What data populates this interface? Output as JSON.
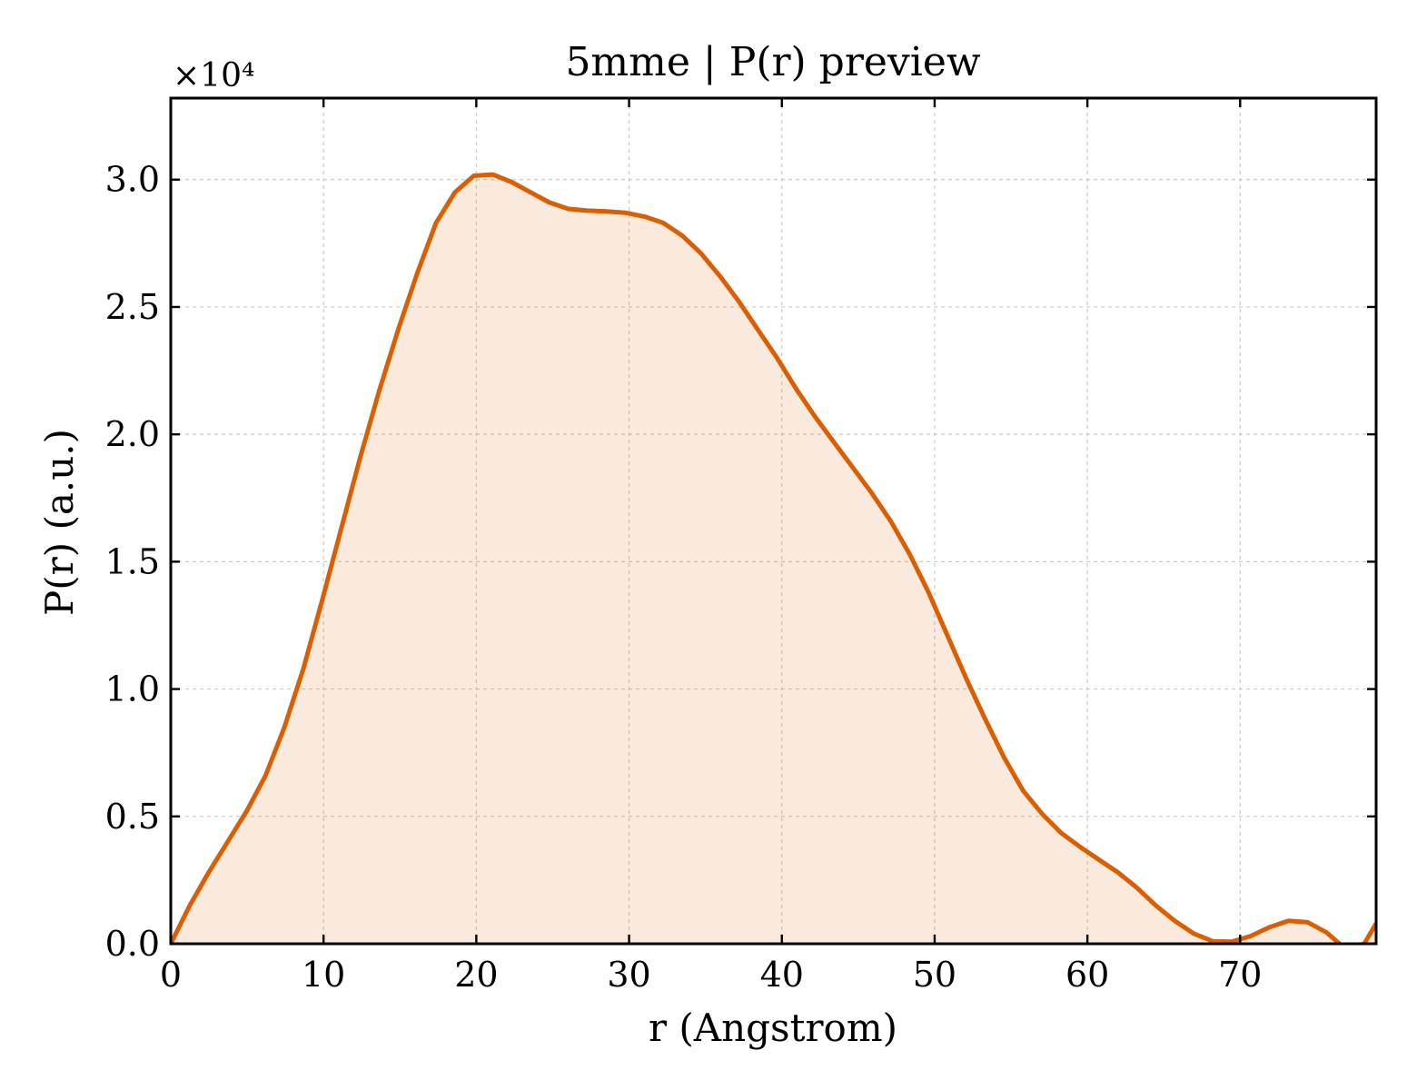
{
  "chart_data": {
    "type": "area",
    "title": "5mme | P(r) preview",
    "xlabel": "r (Angstrom)",
    "ylabel": "P(r) (a.u.)",
    "y_multiplier_label": "×10⁴",
    "xlim": [
      0,
      78.9
    ],
    "ylim": [
      0,
      3.32
    ],
    "x_ticks": [
      0,
      10,
      20,
      30,
      40,
      50,
      60,
      70
    ],
    "y_ticks": [
      0.0,
      0.5,
      1.0,
      1.5,
      2.0,
      2.5,
      3.0
    ],
    "x_tick_labels": [
      "0",
      "10",
      "20",
      "30",
      "40",
      "50",
      "60",
      "70"
    ],
    "y_tick_labels": [
      "0.0",
      "0.5",
      "1.0",
      "1.5",
      "2.0",
      "2.5",
      "3.0"
    ],
    "grid": true,
    "grid_style": "dashed",
    "tick_direction": "in",
    "legend": "none",
    "line_color": "#d95f02",
    "fill_color": "#d95f02",
    "fill_opacity": 0.13,
    "series": [
      {
        "x": [
          0,
          1.24,
          2.48,
          3.72,
          4.96,
          6.2,
          7.44,
          8.68,
          9.92,
          11.16,
          12.4,
          13.64,
          14.88,
          16.12,
          17.36,
          18.6,
          19.84,
          21.08,
          22.32,
          23.56,
          24.8,
          26.04,
          27.28,
          28.52,
          29.76,
          31.0,
          32.24,
          33.48,
          34.72,
          35.96,
          37.2,
          38.44,
          39.68,
          40.92,
          42.16,
          43.4,
          44.64,
          45.88,
          47.12,
          48.36,
          49.6,
          50.84,
          52.08,
          53.32,
          54.56,
          55.8,
          57.04,
          58.28,
          59.52,
          60.76,
          62.0,
          63.24,
          64.48,
          65.72,
          66.96,
          68.2,
          69.44,
          70.68,
          71.92,
          73.16,
          74.4,
          75.64,
          76.88,
          78.12,
          78.9
        ],
        "y": [
          0.0,
          0.15,
          0.28,
          0.4,
          0.52,
          0.66,
          0.85,
          1.08,
          1.35,
          1.63,
          1.91,
          2.17,
          2.41,
          2.63,
          2.83,
          2.95,
          3.015,
          3.02,
          2.99,
          2.95,
          2.91,
          2.885,
          2.878,
          2.875,
          2.87,
          2.855,
          2.83,
          2.78,
          2.71,
          2.62,
          2.52,
          2.41,
          2.3,
          2.18,
          2.07,
          1.97,
          1.87,
          1.77,
          1.66,
          1.53,
          1.38,
          1.21,
          1.04,
          0.88,
          0.73,
          0.6,
          0.51,
          0.435,
          0.38,
          0.33,
          0.28,
          0.22,
          0.15,
          0.09,
          0.04,
          0.01,
          0.008,
          0.03,
          0.065,
          0.09,
          0.085,
          0.045,
          -0.02,
          0.0,
          0.08
        ]
      }
    ]
  }
}
